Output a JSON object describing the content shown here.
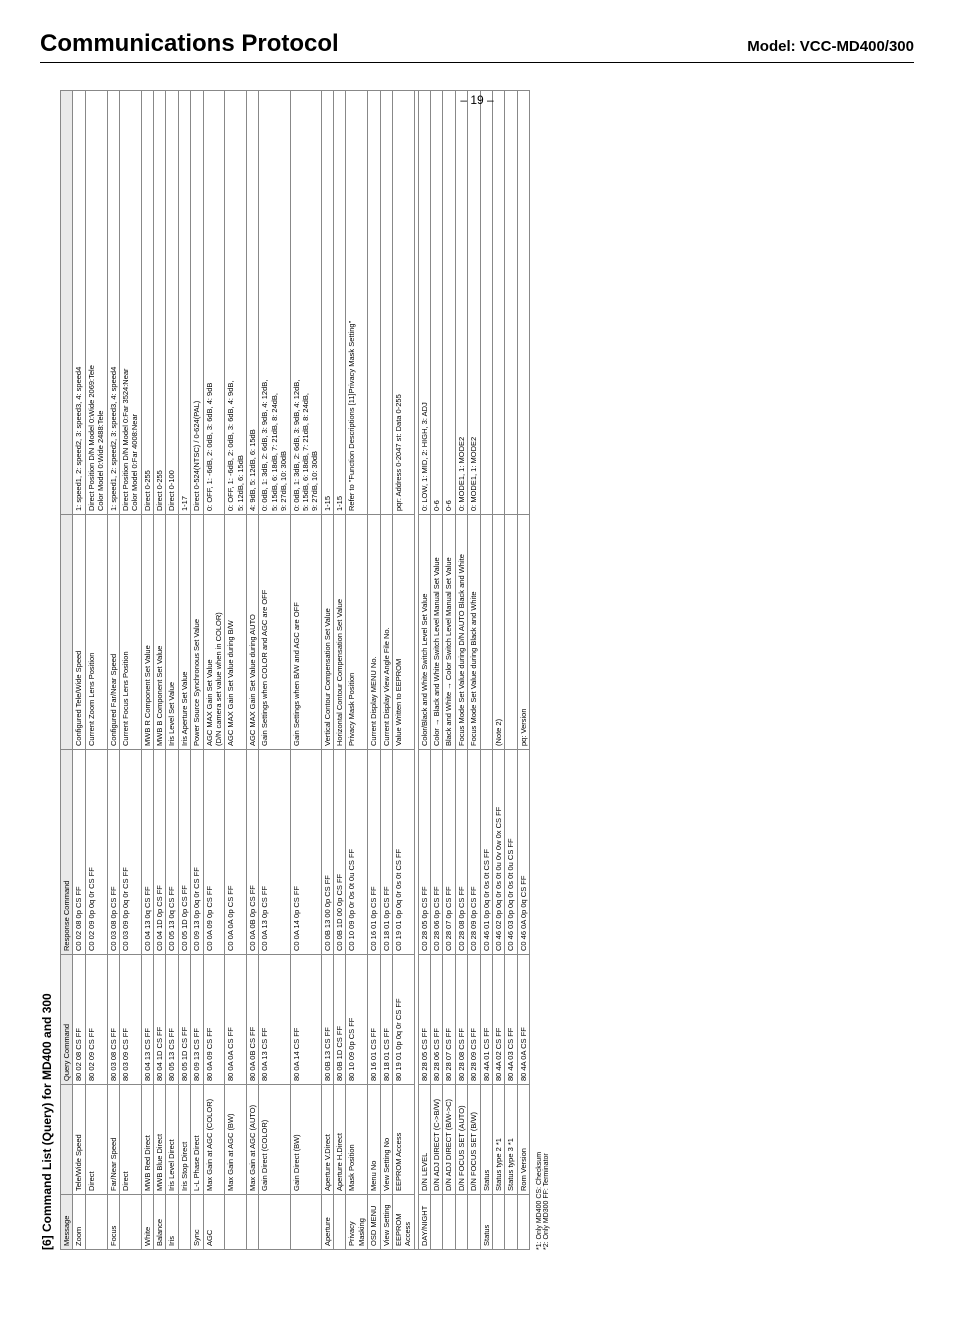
{
  "header": {
    "title": "Communications Protocol",
    "model": "Model: VCC-MD400/300"
  },
  "section_title": "[6] Command List (Query) for MD400 and 300",
  "page_number": "– 19 –",
  "footnotes": [
    "*1: Only MD400   CS: Checksum",
    "*2: Only MD300   FF: Terminator"
  ],
  "table": {
    "headers": [
      "Message",
      "",
      "Query Command",
      "Response Command",
      "",
      ""
    ],
    "rows": [
      {
        "msg": "Zoom",
        "name": "Tele/Wide Speed",
        "query": "80  02  08  CS  FF",
        "resp": "C0  02  08  0p  CS  FF",
        "d1": "Configured Tele/Wide Speed",
        "d2": "1: speed1, 2: speed2, 3: speed3, 4: speed4"
      },
      {
        "msg": "",
        "name": "Direct",
        "query": "80  02  09  CS  FF",
        "resp": "C0  02  09  0p  0q  0r  CS  FF",
        "d1": "Current Zoom Lens Position",
        "d2": "Direct Position D/N Model 0:Wide 2069:Tele\nColor Model 0:Wide 2488:Tele"
      },
      {
        "msg": "Focus",
        "name": "Far/Near Speed",
        "query": "80  03  08  CS  FF",
        "resp": "C0  03  08  0p  CS  FF",
        "d1": "Configured Far/Near Speed",
        "d2": "1: speed1, 2: speed2, 3: speed3, 4: speed4"
      },
      {
        "msg": "",
        "name": "Direct",
        "query": "80  03  09  CS  FF",
        "resp": "C0  03  09  0p  0q  0r  CS  FF",
        "d1": "Current Focus Lens Position",
        "d2": "Direct Position D/N Model 0:Far 3524:Near\nColor Model 0:Far 4008:Near"
      },
      {
        "msg": "White",
        "name": "MWB Red Direct",
        "query": "80  04  13  CS  FF",
        "resp": "C0  04  13  0q  CS  FF",
        "d1": "MWB R Component Set Value",
        "d2": "Direct 0-255"
      },
      {
        "msg": "Balance",
        "name": "MWB Blue Direct",
        "query": "80  04  1D  CS  FF",
        "resp": "C0  04  1D  0p  CS  FF",
        "d1": "MWB B Component Set Value",
        "d2": "Direct 0-255"
      },
      {
        "msg": "Iris",
        "name": "Iris Level Direct",
        "query": "80  05  13  CS  FF",
        "resp": "C0  05  13  0q  CS  FF",
        "d1": "Iris Level Set Value",
        "d2": "Direct 0-100"
      },
      {
        "msg": "",
        "name": "Iris Stop Direct",
        "query": "80  05  1D  CS  FF",
        "resp": "C0  05  1D  0p  CS  FF",
        "d1": "Iris Aperture Set Value",
        "d2": "1-17"
      },
      {
        "msg": "Sync",
        "name": "L-L Phase Direct",
        "query": "80  09  13  CS  FF",
        "resp": "C0  09  13  0p  0q  0r  CS  FF",
        "d1": "Power Source Synchronous Set Value",
        "d2": "Direct 0-524(NTSC) / 0-624(PAL)"
      },
      {
        "msg": "AGC",
        "name": "Max Gain at AGC (COLOR)",
        "query": "80  0A  09  CS  FF",
        "resp": "C0  0A  09  0p  CS  FF",
        "d1": "AGC MAX Gain Set Value\n(D/N camera set value when in COLOR)",
        "d2": "0: OFF, 1: -6dB, 2: 0dB, 3: 6dB, 4: 9dB"
      },
      {
        "msg": "",
        "name": "Max Gain at AGC (BW)",
        "query": "80  0A  0A  CS  FF",
        "resp": "C0  0A  0A  0p  CS  FF",
        "d1": "AGC MAX Gain Set Value during B/W",
        "d2": "0: OFF, 1: -6dB, 2: 0dB, 3: 6dB, 4: 9dB,\n5: 12dB, 6: 15dB"
      },
      {
        "msg": "",
        "name": "Max Gain at AGC (AUTO)",
        "query": "80  0A  0B  CS  FF",
        "resp": "C0  0A  0B  0p  CS  FF",
        "d1": "AGC MAX Gain Set Value during AUTO",
        "d2": "4: 9dB, 5: 12dB, 6: 15dB"
      },
      {
        "msg": "",
        "name": "Gain Direct (COLOR)",
        "query": "80  0A  13  CS  FF",
        "resp": "C0  0A  13  0p  CS  FF",
        "d1": "Gain Settings when COLOR and AGC are OFF",
        "d2": "0: 0dB, 1: 3dB, 2: 6dB, 3: 9dB, 4: 12dB,\n5: 15dB, 6: 18dB, 7: 21dB, 8: 24dB,\n9: 27dB, 10: 30dB"
      },
      {
        "msg": "",
        "name": "Gain Direct (BW)",
        "query": "80  0A  14  CS  FF",
        "resp": "C0  0A  14  0p  CS  FF",
        "d1": "Gain Settings when B/W and AGC are OFF",
        "d2": "0: 0dB, 1: 3dB, 2: 6dB, 3: 9dB, 4: 12dB,\n5: 15dB, 6: 18dB, 7: 21dB, 8: 24dB,\n9: 27dB, 10: 30dB"
      },
      {
        "msg": "Aperture",
        "name": "Aperture V.Direct",
        "query": "80  0B  13  CS  FF",
        "resp": "C0  0B  13  00  0p  CS  FF",
        "d1": "Vertical Contour Compensation Set Value",
        "d2": "1-15"
      },
      {
        "msg": "",
        "name": "Aperture H.Direct",
        "query": "80  0B  1D  CS  FF",
        "resp": "C0  0B  1D  00  0p  CS  FF",
        "d1": "Horizontal Contour Compensation Set Value",
        "d2": "1-15"
      },
      {
        "msg": "Privacy Masking",
        "name": "Mask Position",
        "query": "80  10  09  0p  CS  FF",
        "resp": "C0  10  09  0p  0r  0s  0t  0u  CS  FF",
        "d1": "Privacy Mask Position",
        "d2": "Refer to \"Function Descriptions [11]Privacy Mask Setting\""
      },
      {
        "msg": "OSD MENU",
        "name": "Menu No",
        "query": "80  16  01  CS  FF",
        "resp": "C0  16  01  0p  CS  FF",
        "d1": "Current Display MENU No.",
        "d2": ""
      },
      {
        "msg": "View Setting",
        "name": "View Setting No",
        "query": "80  18  01  CS  FF",
        "resp": "C0  18  01  0p  CS  FF",
        "d1": "Current Display View Angle File No.",
        "d2": ""
      },
      {
        "msg": "EEPROM Access",
        "name": "EEPROM Access",
        "query": "80  19  01  0p  0q  0r  CS  FF",
        "resp": "C0  19  01  0p  0q  0r  0s  0t  CS  FF",
        "d1": "Value Written to EEPROM",
        "d2": "pqr: Address 0-2047  st: Data 0-255"
      }
    ],
    "rows2": [
      {
        "msg": "DAY/NIGHT",
        "name": "D/N LEVEL",
        "query": "80  28  05  CS  FF",
        "resp": "C0  28  05  0p  CS  FF",
        "d1": "Color/Black and White Switch Level Set Value",
        "d2": "0: LOW, 1: MID, 2: HIGH, 3: ADJ"
      },
      {
        "msg": "",
        "name": "D/N ADJ DIRECT (C->B/W)",
        "query": "80  28  06  CS  FF",
        "resp": "C0  28  06  0p  CS  FF",
        "d1": "Color → Black and White Switch Level Manual Set Value",
        "d2": "0-6"
      },
      {
        "msg": "",
        "name": "D/N ADJ DIRECT (B/W->C)",
        "query": "80  28  07  CS  FF",
        "resp": "C0  28  07  0p  CS  FF",
        "d1": "Black and White → Color Switch Level Manual Set Value",
        "d2": "0-6"
      },
      {
        "msg": "",
        "name": "D/N FOCUS SET (AUTO)",
        "query": "80  28  08  CS  FF",
        "resp": "C0  28  08  0p  CS  FF",
        "d1": "Focus Mode Set Value during D/N AUTO Black and White",
        "d2": "0: MODE1, 1: MODE2"
      },
      {
        "msg": "",
        "name": "D/N FOCUS SET (B/W)",
        "query": "80  28  09  CS  FF",
        "resp": "C0  28  09  0p  CS  FF",
        "d1": "Focus Mode Set Value during Black and White",
        "d2": "0: MODE1, 1: MODE2"
      },
      {
        "msg": "Status",
        "name": "Status",
        "query": "80  4A  01  CS  FF",
        "resp": "C0  46  01  0p  0q  0r  0s  0t  CS  FF",
        "d1": "",
        "d2": ""
      },
      {
        "msg": "",
        "name": "Status type 2                *1",
        "query": "80  4A  02  CS  FF",
        "resp": "C0  46  02  0p  0q  0r  0s  0t  0u  0v  0w  0x  CS  FF",
        "d1": "(Note 2)",
        "d2": ""
      },
      {
        "msg": "",
        "name": "Status type 3                *1",
        "query": "80  4A  03  CS  FF",
        "resp": "C0  46  03  0p  0q  0r  0s  0t  0u  CS  FF",
        "d1": "",
        "d2": ""
      },
      {
        "msg": "",
        "name": "Rom Version",
        "query": "80  4A  0A  CS  FF",
        "resp": "C0  46  0A  0p  0q  CS  FF",
        "d1": "pq: Version",
        "d2": ""
      }
    ]
  },
  "colors": {
    "border": "#888888",
    "header_bg": "#eaeaea",
    "text": "#000000"
  }
}
